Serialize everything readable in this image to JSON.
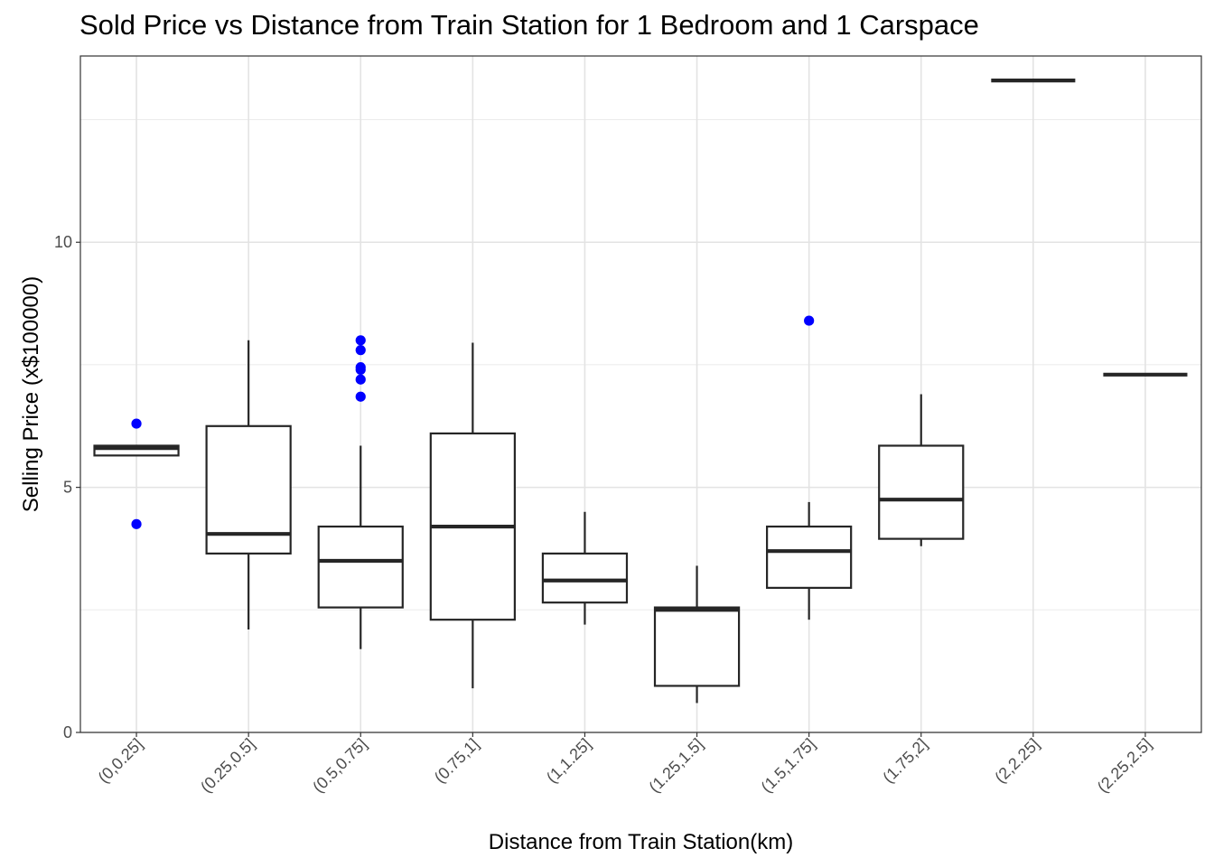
{
  "chart_data": {
    "type": "boxplot",
    "title": "Sold Price vs Distance from Train Station for 1 Bedroom and 1 Carspace",
    "xlabel": "Distance from Train Station(km)",
    "ylabel": "Selling Price (x$100000)",
    "ylim": [
      0,
      13.8
    ],
    "y_ticks": [
      0,
      5,
      10
    ],
    "grid": true,
    "categories": [
      "(0,0.25]",
      "(0.25,0.5]",
      "(0.5,0.75]",
      "(0.75,1]",
      "(1,1.25]",
      "(1.25,1.5]",
      "(1.5,1.75]",
      "(1.75,2]",
      "(2,2.25]",
      "(2.25,2.5]"
    ],
    "boxes": [
      {
        "min": 5.65,
        "q1": 5.65,
        "median": 5.8,
        "q3": 5.85,
        "max": 5.85,
        "outliers": [
          6.3,
          4.25
        ]
      },
      {
        "min": 2.1,
        "q1": 3.65,
        "median": 4.05,
        "q3": 6.25,
        "max": 8.0,
        "outliers": []
      },
      {
        "min": 1.7,
        "q1": 2.55,
        "median": 3.5,
        "q3": 4.2,
        "max": 5.85,
        "outliers": [
          8.0,
          7.8,
          7.45,
          7.4,
          7.2,
          6.85
        ]
      },
      {
        "min": 0.9,
        "q1": 2.3,
        "median": 4.2,
        "q3": 6.1,
        "max": 7.95,
        "outliers": []
      },
      {
        "min": 2.2,
        "q1": 2.65,
        "median": 3.1,
        "q3": 3.65,
        "max": 4.5,
        "outliers": []
      },
      {
        "min": 0.6,
        "q1": 0.95,
        "median": 2.5,
        "q3": 2.55,
        "max": 3.4,
        "outliers": []
      },
      {
        "min": 2.3,
        "q1": 2.95,
        "median": 3.7,
        "q3": 4.2,
        "max": 4.7,
        "outliers": [
          8.4
        ]
      },
      {
        "min": 3.8,
        "q1": 3.95,
        "median": 4.75,
        "q3": 5.85,
        "max": 6.9,
        "outliers": []
      },
      {
        "min": 13.3,
        "q1": 13.3,
        "median": 13.3,
        "q3": 13.3,
        "max": 13.3,
        "outliers": []
      },
      {
        "min": 7.3,
        "q1": 7.3,
        "median": 7.3,
        "q3": 7.3,
        "max": 7.3,
        "outliers": []
      }
    ],
    "outlier_color": "#0000ff",
    "box_color": "#262626"
  }
}
